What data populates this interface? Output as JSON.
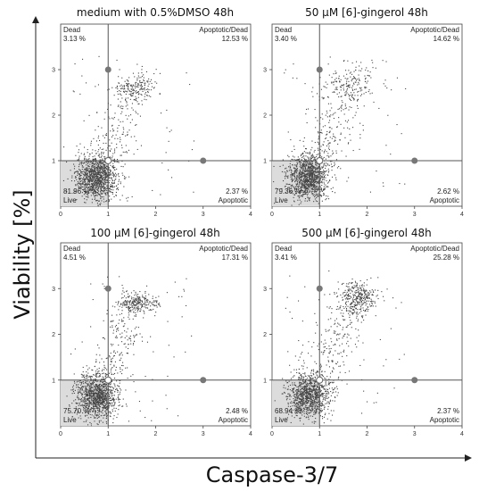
{
  "figure": {
    "y_label": "Viability [%]",
    "x_label": "Caspase-3/7"
  },
  "chart_data": [
    {
      "type": "scatter",
      "title": "medium with 0.5%DMSO 48h",
      "xlim": [
        0,
        4
      ],
      "ylim": [
        0,
        4
      ],
      "xticks": [
        "0",
        "1",
        "2",
        "3",
        "4"
      ],
      "yticks": [
        "1",
        "2",
        "3"
      ],
      "gate": {
        "x": 1,
        "y": 1
      },
      "quadrants": {
        "dead_label": "Dead",
        "dead_value": "3.13 %",
        "apoptotic_dead_label": "Apoptotic/Dead",
        "apoptotic_dead_value": "12.53 %",
        "live_label": "Live",
        "live_value": "81.96 %",
        "apoptotic_label": "Apoptotic",
        "apoptotic_value": "2.37 %"
      },
      "clusters": [
        {
          "cx": 0.75,
          "cy": 0.65,
          "sx": 0.22,
          "sy": 0.25,
          "n": 1100
        },
        {
          "cx": 1.55,
          "cy": 2.6,
          "sx": 0.25,
          "sy": 0.12,
          "n": 140
        }
      ],
      "trail": {
        "from": [
          0.9,
          0.85
        ],
        "to": [
          1.7,
          2.9
        ],
        "n": 200,
        "spread": 0.2
      }
    },
    {
      "type": "scatter",
      "title": "50 μM [6]-gingerol 48h",
      "xlim": [
        0,
        4
      ],
      "ylim": [
        0,
        4
      ],
      "xticks": [
        "0",
        "1",
        "2",
        "3",
        "4"
      ],
      "yticks": [
        "1",
        "2",
        "3"
      ],
      "gate": {
        "x": 1,
        "y": 1
      },
      "quadrants": {
        "dead_label": "Dead",
        "dead_value": "3.40 %",
        "apoptotic_dead_label": "Apoptotic/Dead",
        "apoptotic_dead_value": "14.62 %",
        "live_label": "Live",
        "live_value": "79.36 %",
        "apoptotic_label": "Apoptotic",
        "apoptotic_value": "2.62 %"
      },
      "clusters": [
        {
          "cx": 0.75,
          "cy": 0.65,
          "sx": 0.22,
          "sy": 0.25,
          "n": 1100
        },
        {
          "cx": 1.6,
          "cy": 2.65,
          "sx": 0.28,
          "sy": 0.18,
          "n": 130
        }
      ],
      "trail": {
        "from": [
          0.9,
          0.85
        ],
        "to": [
          1.8,
          3.0
        ],
        "n": 230,
        "spread": 0.25
      }
    },
    {
      "type": "scatter",
      "title": "100 μM [6]-gingerol 48h",
      "xlim": [
        0,
        4
      ],
      "ylim": [
        0,
        4
      ],
      "xticks": [
        "0",
        "1",
        "2",
        "3",
        "4"
      ],
      "yticks": [
        "1",
        "2",
        "3"
      ],
      "gate": {
        "x": 1,
        "y": 1
      },
      "quadrants": {
        "dead_label": "Dead",
        "dead_value": "4.51 %",
        "apoptotic_dead_label": "Apoptotic/Dead",
        "apoptotic_dead_value": "17.31 %",
        "live_label": "Live",
        "live_value": "75.70 %",
        "apoptotic_label": "Apoptotic",
        "apoptotic_value": "2.48 %"
      },
      "clusters": [
        {
          "cx": 0.75,
          "cy": 0.65,
          "sx": 0.22,
          "sy": 0.25,
          "n": 1050
        },
        {
          "cx": 1.6,
          "cy": 2.7,
          "sx": 0.22,
          "sy": 0.1,
          "n": 220
        }
      ],
      "trail": {
        "from": [
          0.9,
          0.85
        ],
        "to": [
          1.6,
          2.8
        ],
        "n": 220,
        "spread": 0.22
      }
    },
    {
      "type": "scatter",
      "title": "500 μM [6]-gingerol 48h",
      "xlim": [
        0,
        4
      ],
      "ylim": [
        0,
        4
      ],
      "xticks": [
        "0",
        "1",
        "2",
        "3",
        "4"
      ],
      "yticks": [
        "1",
        "2",
        "3"
      ],
      "gate": {
        "x": 1,
        "y": 1
      },
      "quadrants": {
        "dead_label": "Dead",
        "dead_value": "3.41 %",
        "apoptotic_dead_label": "Apoptotic/Dead",
        "apoptotic_dead_value": "25.28 %",
        "live_label": "Live",
        "live_value": "68.94 %",
        "apoptotic_label": "Apoptotic",
        "apoptotic_value": "2.37 %"
      },
      "clusters": [
        {
          "cx": 0.75,
          "cy": 0.65,
          "sx": 0.22,
          "sy": 0.25,
          "n": 950
        },
        {
          "cx": 1.8,
          "cy": 2.8,
          "sx": 0.2,
          "sy": 0.18,
          "n": 300
        }
      ],
      "trail": {
        "from": [
          0.9,
          0.85
        ],
        "to": [
          1.8,
          3.0
        ],
        "n": 260,
        "spread": 0.25
      }
    }
  ]
}
